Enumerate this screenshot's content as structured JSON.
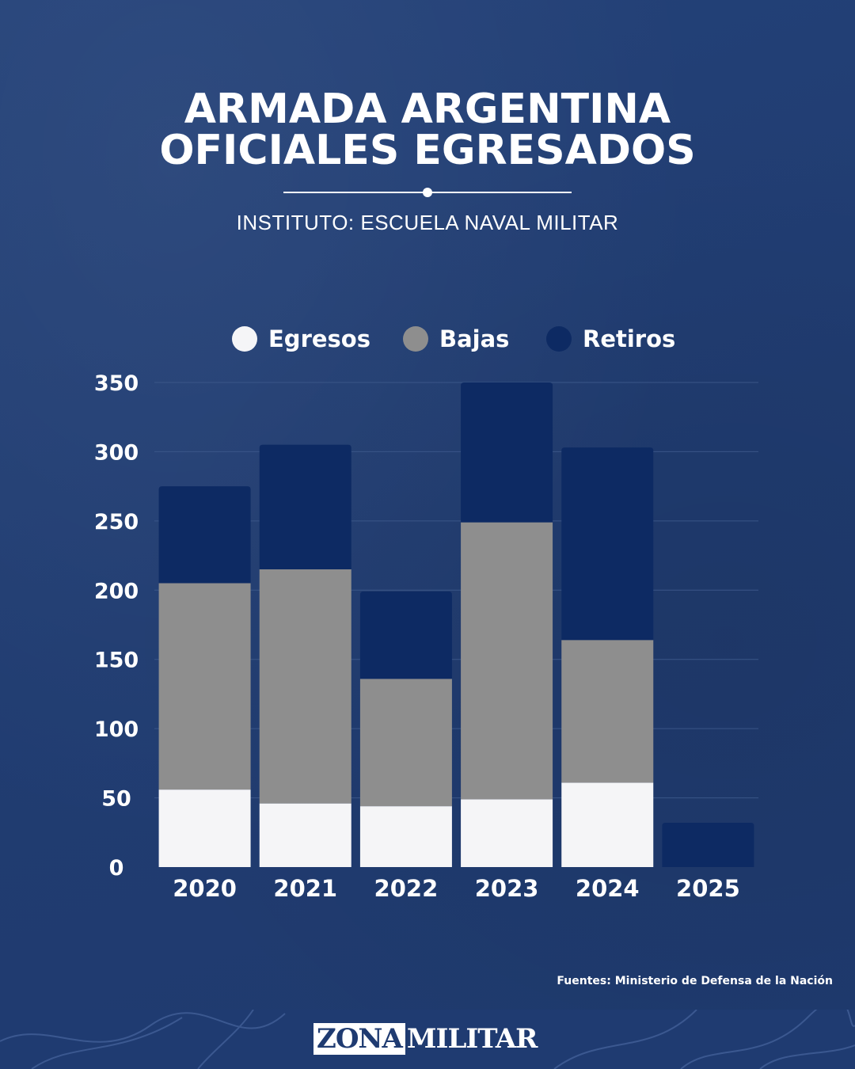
{
  "colors": {
    "background": "#213e74",
    "egresos": "#f5f5f7",
    "bajas": "#8e8e8e",
    "retiros": "#0d2a63",
    "grid": "#3a5688"
  },
  "header": {
    "title_line1": "ARMADA ARGENTINA",
    "title_line2": "OFICIALES EGRESADOS",
    "subtitle": "INSTITUTO: ESCUELA NAVAL MILITAR"
  },
  "chart_data": {
    "type": "bar",
    "stacked": true,
    "title": "ARMADA ARGENTINA OFICIALES EGRESADOS",
    "subtitle": "INSTITUTO: ESCUELA NAVAL MILITAR",
    "categories": [
      "2020",
      "2021",
      "2022",
      "2023",
      "2024",
      "2025"
    ],
    "series": [
      {
        "name": "Egresos",
        "values": [
          56,
          46,
          44,
          49,
          61,
          0
        ]
      },
      {
        "name": "Bajas",
        "values": [
          149,
          169,
          92,
          200,
          103,
          0
        ]
      },
      {
        "name": "Retiros",
        "values": [
          70,
          90,
          63,
          101,
          139,
          32
        ]
      }
    ],
    "yticks": [
      "0",
      "50",
      "100",
      "150",
      "200",
      "250",
      "300",
      "350"
    ],
    "ylim": [
      0,
      350
    ],
    "grid": true,
    "legend": "top",
    "xlabel": "",
    "ylabel": ""
  },
  "footer": {
    "sources": "Fuentes: Ministerio de Defensa de la Nación",
    "logo_part1": "ZONA",
    "logo_part2": "MILITAR"
  }
}
